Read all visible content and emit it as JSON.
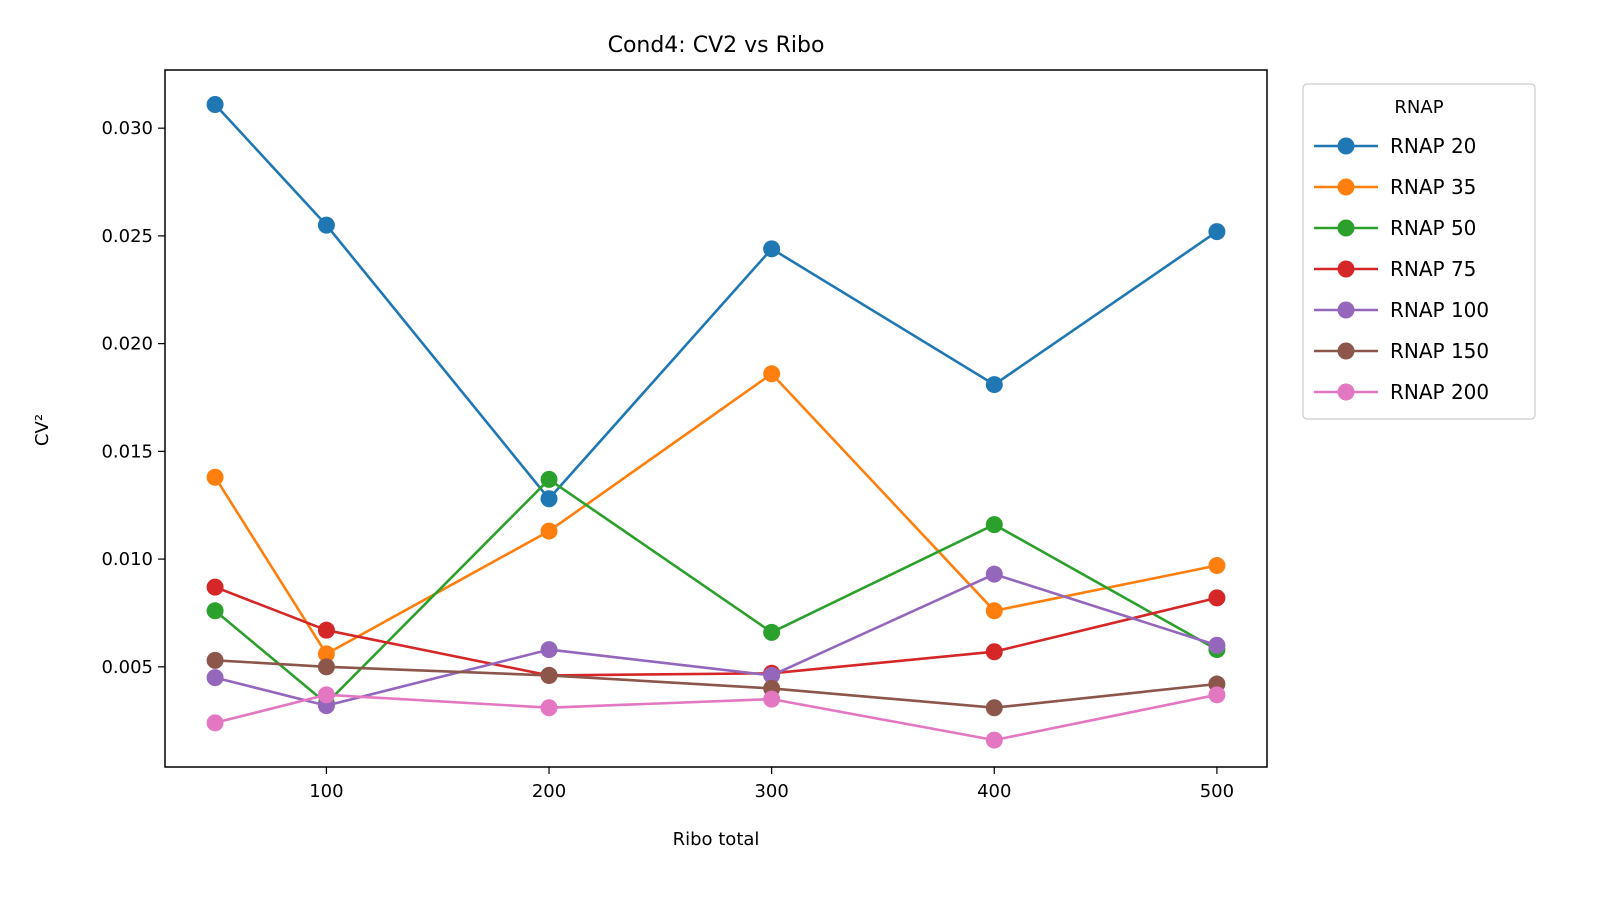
{
  "chart_data": {
    "type": "line",
    "title": "Cond4: CV2 vs Ribo",
    "xlabel": "Ribo total",
    "ylabel": "CV²",
    "x": [
      50,
      100,
      200,
      300,
      400,
      500
    ],
    "xlim": [
      27.5,
      522.5
    ],
    "ylim": [
      0.00035,
      0.0327
    ],
    "xticks": [
      100,
      200,
      300,
      400,
      500
    ],
    "xtick_labels": [
      "100",
      "200",
      "300",
      "400",
      "500"
    ],
    "yticks": [
      0.005,
      0.01,
      0.015,
      0.02,
      0.025,
      0.03
    ],
    "ytick_labels": [
      "0.005",
      "0.010",
      "0.015",
      "0.020",
      "0.025",
      "0.030"
    ],
    "grid": false,
    "legend": {
      "title": "RNAP",
      "placement": "outside-right-top"
    },
    "series": [
      {
        "name": "RNAP 20",
        "color": "#1f77b4",
        "values": [
          0.0311,
          0.0255,
          0.0128,
          0.0244,
          0.0181,
          0.0252
        ]
      },
      {
        "name": "RNAP 35",
        "color": "#ff7f0e",
        "values": [
          0.0138,
          0.0056,
          0.0113,
          0.0186,
          0.0076,
          0.0097
        ]
      },
      {
        "name": "RNAP 50",
        "color": "#2ca02c",
        "values": [
          0.0076,
          0.0033,
          0.0137,
          0.0066,
          0.0116,
          0.0058
        ]
      },
      {
        "name": "RNAP 75",
        "color": "#d62728",
        "values": [
          0.0087,
          0.0067,
          0.0046,
          0.0047,
          0.0057,
          0.0082
        ]
      },
      {
        "name": "RNAP 100",
        "color": "#9467bd",
        "values": [
          0.0045,
          0.0032,
          0.0058,
          0.0046,
          0.0093,
          0.006
        ]
      },
      {
        "name": "RNAP 150",
        "color": "#8c564b",
        "values": [
          0.0053,
          0.005,
          0.0046,
          0.004,
          0.0031,
          0.0042
        ]
      },
      {
        "name": "RNAP 200",
        "color": "#e377c2",
        "values": [
          0.0024,
          0.0037,
          0.0031,
          0.0035,
          0.0016,
          0.0037
        ]
      }
    ]
  }
}
